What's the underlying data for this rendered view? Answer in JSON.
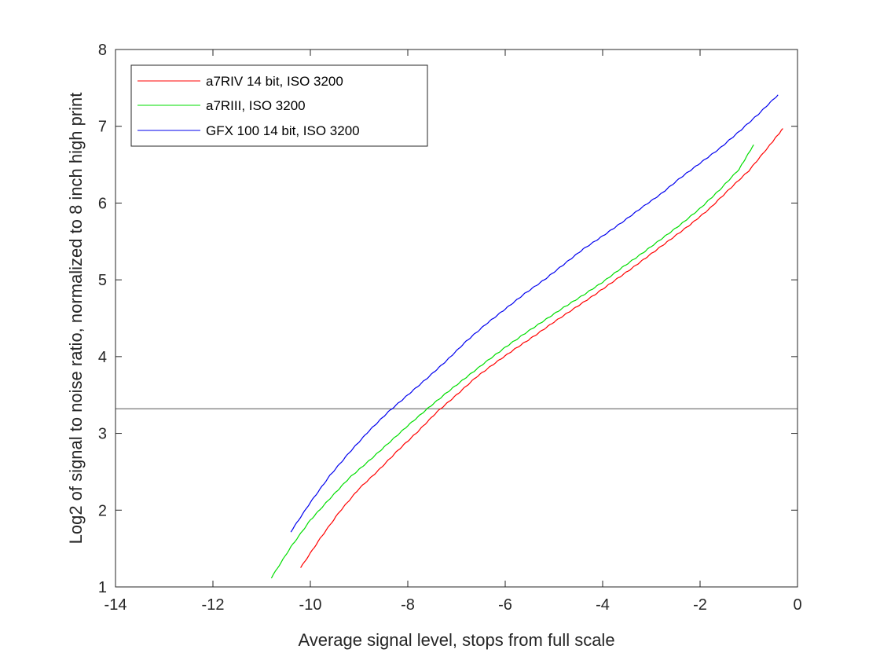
{
  "chart_data": {
    "type": "line",
    "title": "",
    "xlabel": "Average signal level, stops from full scale",
    "ylabel": "Log2 of signal to noise ratio, normalized to 8 inch high print",
    "xlim": [
      -14,
      0
    ],
    "ylim": [
      1,
      8
    ],
    "xticks": [
      -14,
      -12,
      -10,
      -8,
      -6,
      -4,
      -2,
      0
    ],
    "yticks": [
      1,
      2,
      3,
      4,
      5,
      6,
      7,
      8
    ],
    "xtick_labels": [
      "-14",
      "-12",
      "-10",
      "-8",
      "-6",
      "-4",
      "-2",
      "0"
    ],
    "ytick_labels": [
      "1",
      "2",
      "3",
      "4",
      "5",
      "6",
      "7",
      "8"
    ],
    "grid": false,
    "legend_position": "top-left",
    "reference_line": {
      "y": 3.32,
      "color": "#555555"
    },
    "series": [
      {
        "name": "a7RIV 14 bit, ISO 3200",
        "color": "#ff0000",
        "x": [
          -10.2,
          -9.8,
          -9.4,
          -9.0,
          -8.6,
          -8.2,
          -7.8,
          -7.4,
          -7.0,
          -6.6,
          -6.2,
          -5.8,
          -5.4,
          -5.0,
          -4.6,
          -4.2,
          -3.8,
          -3.4,
          -3.0,
          -2.6,
          -2.2,
          -1.8,
          -1.4,
          -1.0,
          -0.6,
          -0.3
        ],
        "y": [
          1.25,
          1.63,
          1.98,
          2.28,
          2.52,
          2.78,
          3.02,
          3.28,
          3.5,
          3.73,
          3.92,
          4.1,
          4.27,
          4.45,
          4.62,
          4.79,
          4.97,
          5.15,
          5.34,
          5.53,
          5.72,
          5.93,
          6.18,
          6.42,
          6.73,
          6.97
        ]
      },
      {
        "name": "a7RIII, ISO 3200",
        "color": "#00dd00",
        "x": [
          -10.8,
          -10.4,
          -10.0,
          -9.6,
          -9.2,
          -8.8,
          -8.4,
          -8.0,
          -7.6,
          -7.2,
          -6.8,
          -6.4,
          -6.0,
          -5.6,
          -5.2,
          -4.8,
          -4.4,
          -4.0,
          -3.6,
          -3.2,
          -2.8,
          -2.4,
          -2.0,
          -1.6,
          -1.2,
          -0.9
        ],
        "y": [
          1.12,
          1.52,
          1.87,
          2.15,
          2.42,
          2.64,
          2.87,
          3.1,
          3.32,
          3.53,
          3.73,
          3.93,
          4.12,
          4.3,
          4.47,
          4.64,
          4.8,
          4.97,
          5.16,
          5.34,
          5.53,
          5.72,
          5.93,
          6.17,
          6.44,
          6.76
        ]
      },
      {
        "name": "GFX 100 14 bit, ISO 3200",
        "color": "#0000ee",
        "x": [
          -10.4,
          -10.0,
          -9.6,
          -9.2,
          -8.8,
          -8.4,
          -8.0,
          -7.6,
          -7.2,
          -6.8,
          -6.4,
          -6.0,
          -5.6,
          -5.2,
          -4.8,
          -4.4,
          -4.0,
          -3.6,
          -3.2,
          -2.8,
          -2.4,
          -2.0,
          -1.6,
          -1.2,
          -0.8,
          -0.4
        ],
        "y": [
          1.72,
          2.1,
          2.45,
          2.75,
          3.03,
          3.28,
          3.5,
          3.72,
          3.95,
          4.2,
          4.42,
          4.62,
          4.82,
          5.0,
          5.2,
          5.4,
          5.57,
          5.75,
          5.94,
          6.12,
          6.33,
          6.52,
          6.71,
          6.93,
          7.16,
          7.41
        ]
      }
    ]
  }
}
